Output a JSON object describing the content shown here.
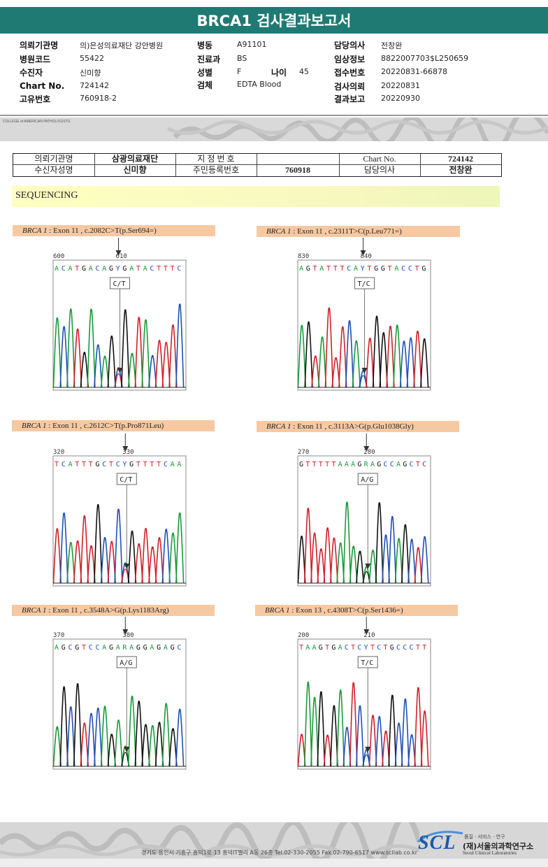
{
  "report": {
    "title": "BRCA1 검사결과보고서"
  },
  "info": {
    "institution_label": "의뢰기관명",
    "institution": "의)은성의료재단 강안병원",
    "hospital_code_label": "병원코드",
    "hospital_code": "55422",
    "recipient_label": "수진자",
    "recipient": "신미향",
    "chart_label": "Chart No.",
    "chart": "724142",
    "unique_label": "고유번호",
    "unique": "760918-2",
    "ward_label": "병동",
    "ward": "A91101",
    "dept_label": "진료과",
    "dept": "BS",
    "sex_label": "성별",
    "sex": "F",
    "age_label": "나이",
    "age": "45",
    "specimen_label": "검체",
    "specimen": "EDTA Blood",
    "doctor_label": "담당의사",
    "doctor": "전창완",
    "clinical_label": "임상정보",
    "clinical": "8822007703$L250659",
    "receipt_label": "접수번호",
    "receipt": "20220831-66878",
    "request_label": "검사의뢰",
    "request": "20220831",
    "result_label": "결과보고",
    "result": "20220930"
  },
  "cap": {
    "text": "COLLEGE of AMERICAN PATHOLOGISTS"
  },
  "patient_table": {
    "institution_label": "의뢰기관명",
    "institution": "삼광의료재단",
    "designated_label": "지 정 번 호",
    "designated": "",
    "chart_label": "Chart No.",
    "chart": "724142",
    "name_label": "수신자성명",
    "name": "신미향",
    "resident_label": "주민등록번호",
    "resident": "760918",
    "doctor_label": "담당의사",
    "doctor": "전창완"
  },
  "section": {
    "label": "SEQUENCING"
  },
  "variants": [
    {
      "gene": "BRCA 1",
      "desc": " : Exon 11 , c.2082C>T(p.Ser694=)",
      "pos_start": "600",
      "pos_mark": "610",
      "bases": "ACATGACAGYGATACTTTC",
      "call": "C/T"
    },
    {
      "gene": "BRCA 1",
      "desc": " : Exon 11 , c.2311T>C(p.Leu771=)",
      "pos_start": "830",
      "pos_mark": "840",
      "bases": "AGTATTTCAYTGGTACCTG",
      "call": "T/C"
    },
    {
      "gene": "BRCA 1",
      "desc": " : Exon 11 , c.2612C>T(p.Pro871Leu)",
      "pos_start": "320",
      "pos_mark": "330",
      "bases": "TCATTTGCTCYGTTTTCAA",
      "call": "C/T"
    },
    {
      "gene": "BRCA 1",
      "desc": " : Exon 11 , c.3113A>G(p.Glu1038Gly)",
      "pos_start": "270",
      "pos_mark": "280",
      "bases": "GTTTTTAAAGRAGCCAGCTC",
      "call": "A/G"
    },
    {
      "gene": "BRCA 1",
      "desc": " : Exon 11 , c.3548A>G(p.Lys1183Arg)",
      "pos_start": "370",
      "pos_mark": "380",
      "bases": "AGCGTCCAGARAGGAGAGC",
      "call": "A/G"
    },
    {
      "gene": "BRCA 1",
      "desc": " : Exon 13 , c.4308T>C(p.Ser1436=)",
      "pos_start": "200",
      "pos_mark": "210",
      "bases": "TAAGTGACTCYTCTGCCCTT",
      "call": "T/C"
    }
  ],
  "footer": {
    "address": "경기도 용인시 기흥구 흥덕1로 13 흥덕IT밸리 A동 26층  Tel.02-330-2055  Fax.02-790-6517  www.scllab.co.kr",
    "logo": "SCL",
    "tagline": "품질 · 서비스 · 연구",
    "org_ko": "(재)서울의과학연구소",
    "org_en": "Seoul Clinical Laboratories"
  },
  "colors": {
    "header": "#1f7a73",
    "label_bg": "#f6c9a2",
    "base_A": "#1a9a3a",
    "base_C": "#1f4fb5",
    "base_G": "#111111",
    "base_T": "#d0202a"
  }
}
